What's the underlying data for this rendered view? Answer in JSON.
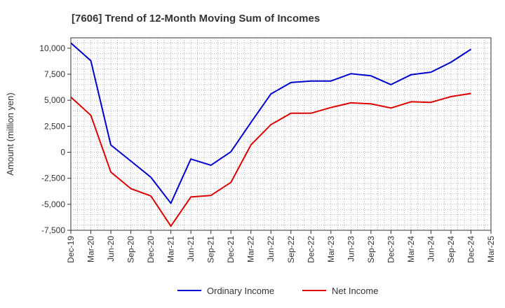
{
  "chart_data": {
    "type": "line",
    "title": "[7606]  Trend of 12-Month Moving Sum of Incomes",
    "xlabel": "",
    "ylabel": "Amount (million yen)",
    "ylim": [
      -7500,
      11000
    ],
    "yticks": [
      10000,
      7500,
      5000,
      2500,
      0,
      -2500,
      -5000,
      -7500
    ],
    "ytick_labels": [
      "10,000",
      "7,500",
      "5,000",
      "2,500",
      "0",
      "-2,500",
      "-5,000",
      "-7,500"
    ],
    "grid": true,
    "legend_position": "bottom",
    "categories": [
      "Dec-19",
      "Mar-20",
      "Jun-20",
      "Sep-20",
      "Dec-20",
      "Mar-21",
      "Jun-21",
      "Sep-21",
      "Dec-21",
      "Mar-22",
      "Jun-22",
      "Sep-22",
      "Dec-22",
      "Mar-23",
      "Jun-23",
      "Sep-23",
      "Dec-23",
      "Mar-24",
      "Jun-24",
      "Sep-24",
      "Dec-24",
      "Mar-25"
    ],
    "series": [
      {
        "name": "Ordinary Income",
        "color": "#0000cc",
        "values": [
          10500,
          8800,
          700,
          -850,
          -2400,
          -4900,
          -650,
          -1250,
          50,
          2850,
          5600,
          6700,
          6850,
          6850,
          7550,
          7350,
          6500,
          7450,
          7700,
          8650,
          9900,
          null
        ]
      },
      {
        "name": "Net Income",
        "color": "#dd0000",
        "values": [
          5300,
          3550,
          -1900,
          -3500,
          -4200,
          -7100,
          -4300,
          -4150,
          -2900,
          700,
          2650,
          3750,
          3750,
          4300,
          4750,
          4650,
          4250,
          4850,
          4800,
          5350,
          5650,
          null
        ]
      }
    ]
  }
}
